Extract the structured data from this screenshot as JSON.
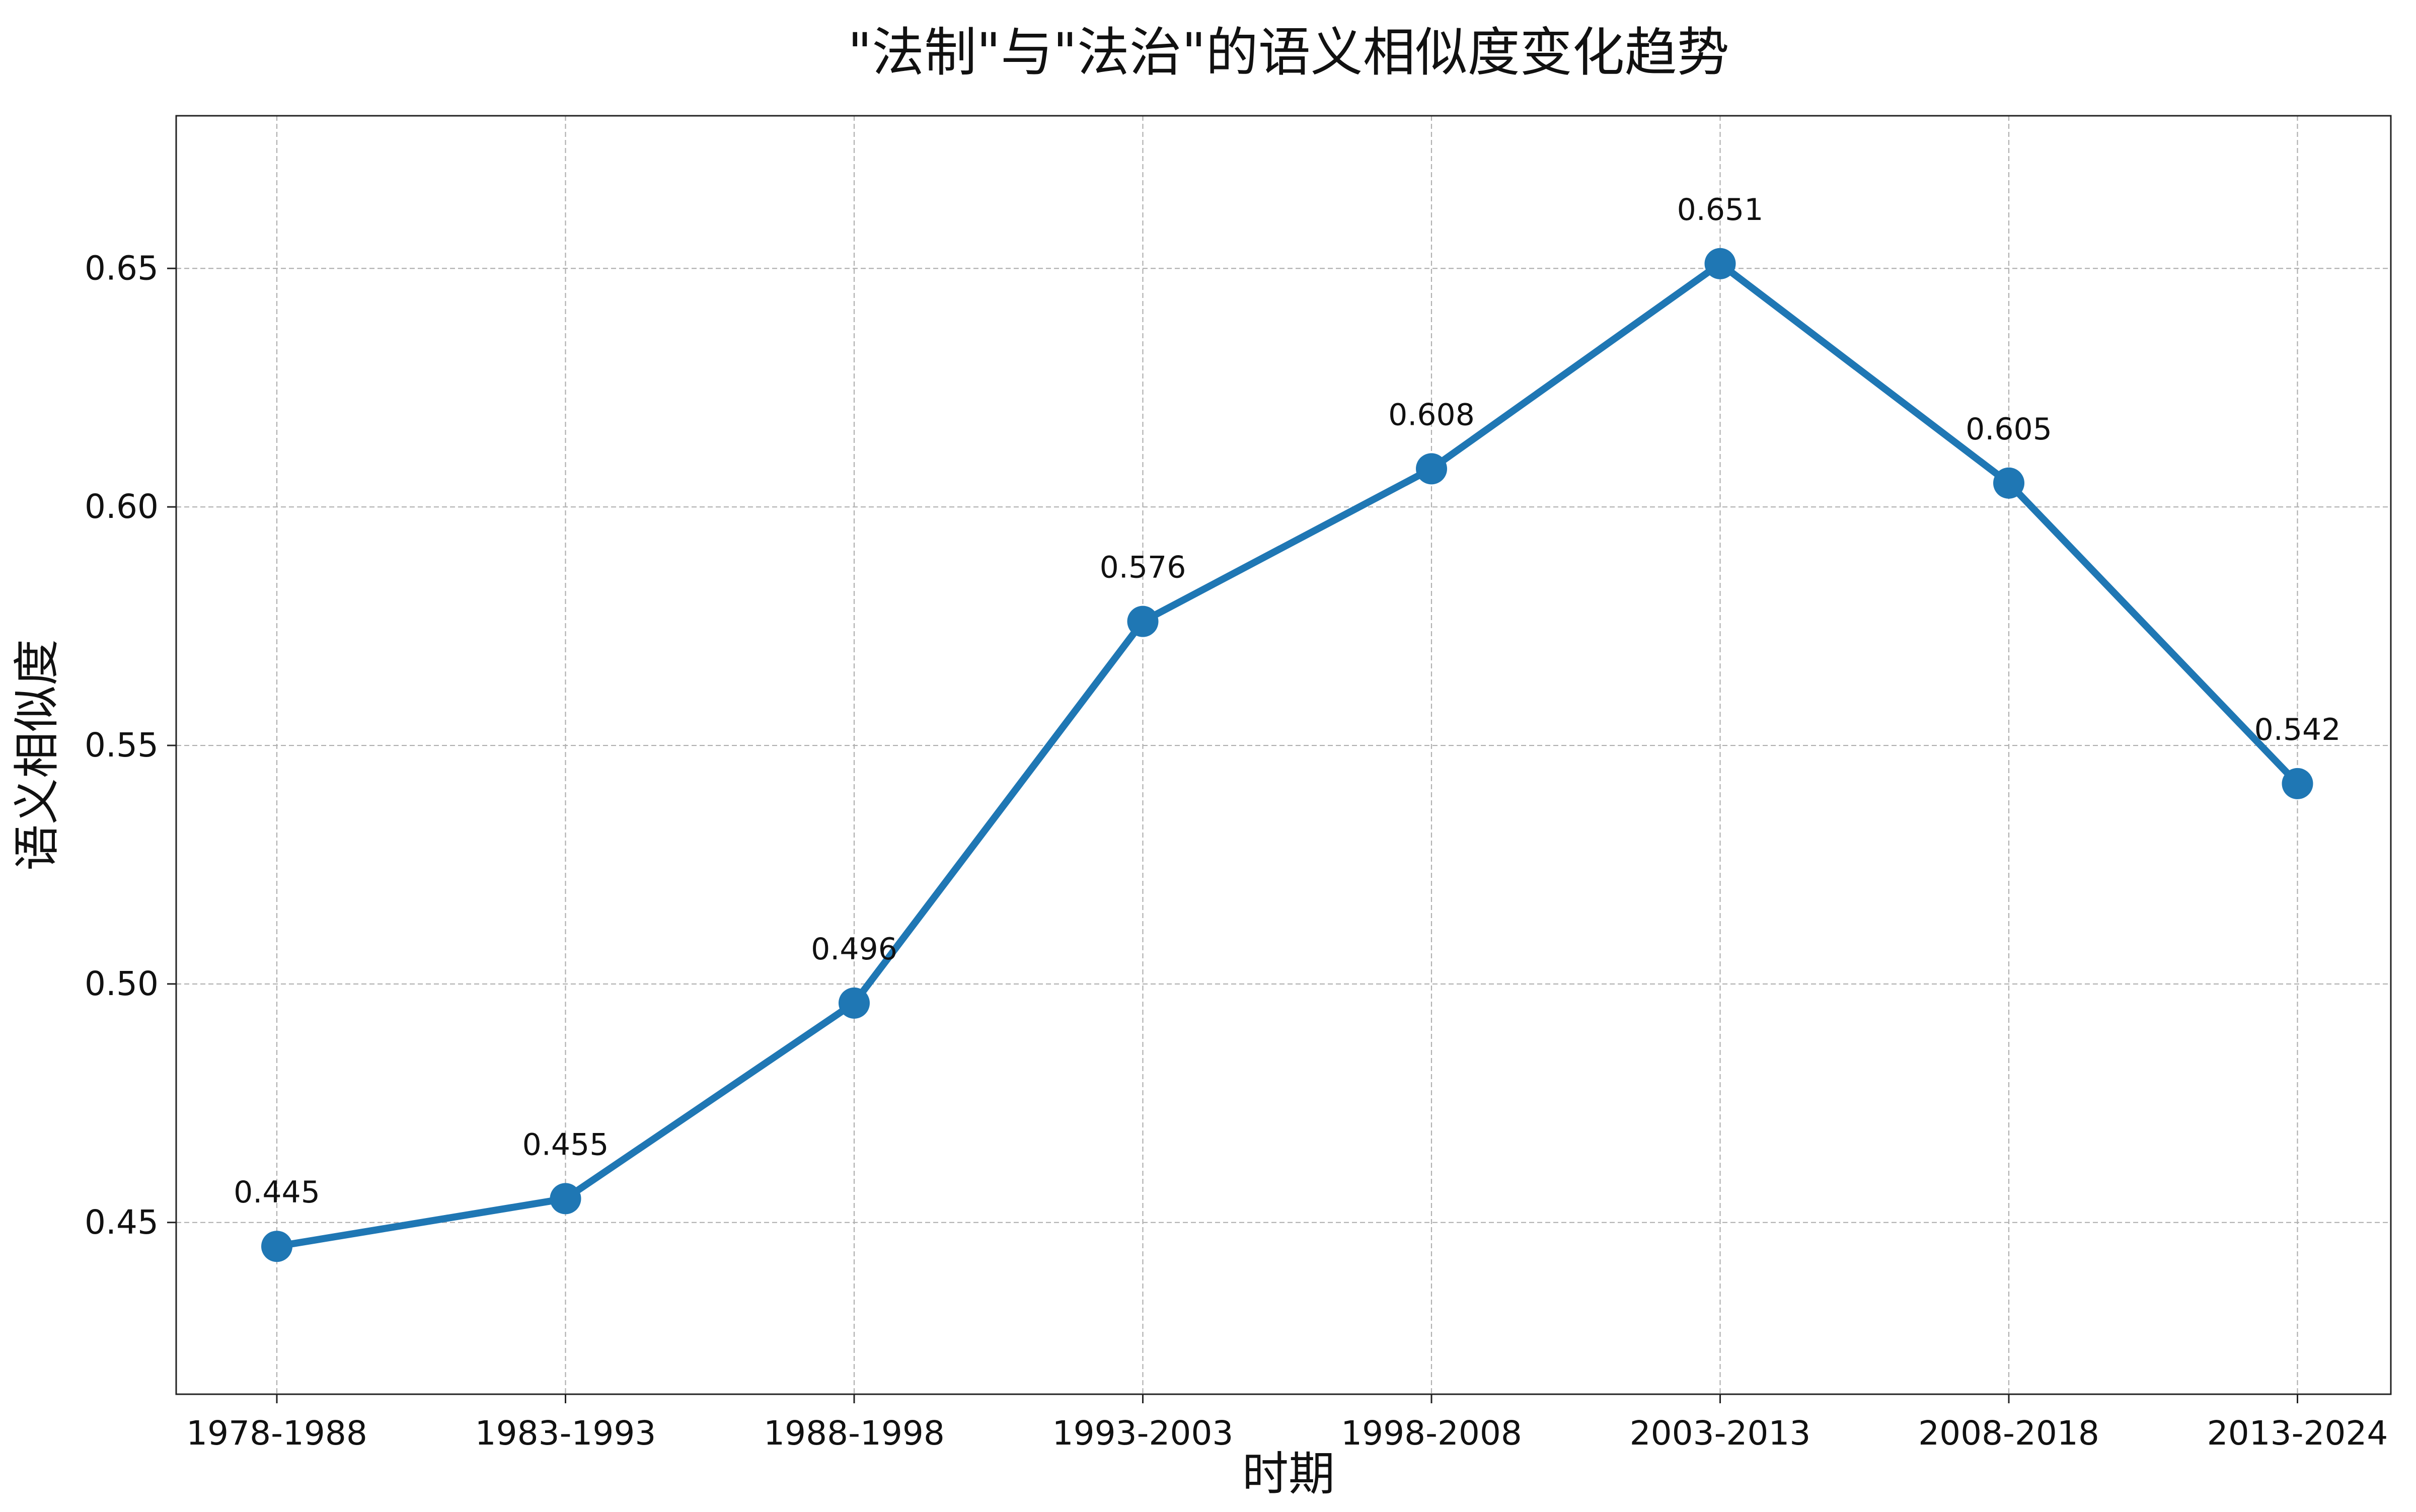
{
  "chart_data": {
    "type": "line",
    "title": "\"法制\"与\"法治\"的语义相似度变化趋势",
    "xlabel": "时期",
    "ylabel": "语义相似度",
    "categories": [
      "1978-1988",
      "1983-1993",
      "1988-1998",
      "1993-2003",
      "1998-2008",
      "2003-2013",
      "2008-2018",
      "2013-2024"
    ],
    "series": [
      {
        "values": [
          0.445,
          0.455,
          0.496,
          0.576,
          0.608,
          0.651,
          0.605,
          0.542
        ],
        "color": "#1f77b4"
      }
    ],
    "data_labels": [
      "0.445",
      "0.455",
      "0.496",
      "0.576",
      "0.608",
      "0.651",
      "0.605",
      "0.542"
    ],
    "yticks": [
      "0.45",
      "0.50",
      "0.55",
      "0.60",
      "0.65"
    ],
    "ylim": [
      0.414,
      0.682
    ],
    "grid": true,
    "legend": false
  }
}
